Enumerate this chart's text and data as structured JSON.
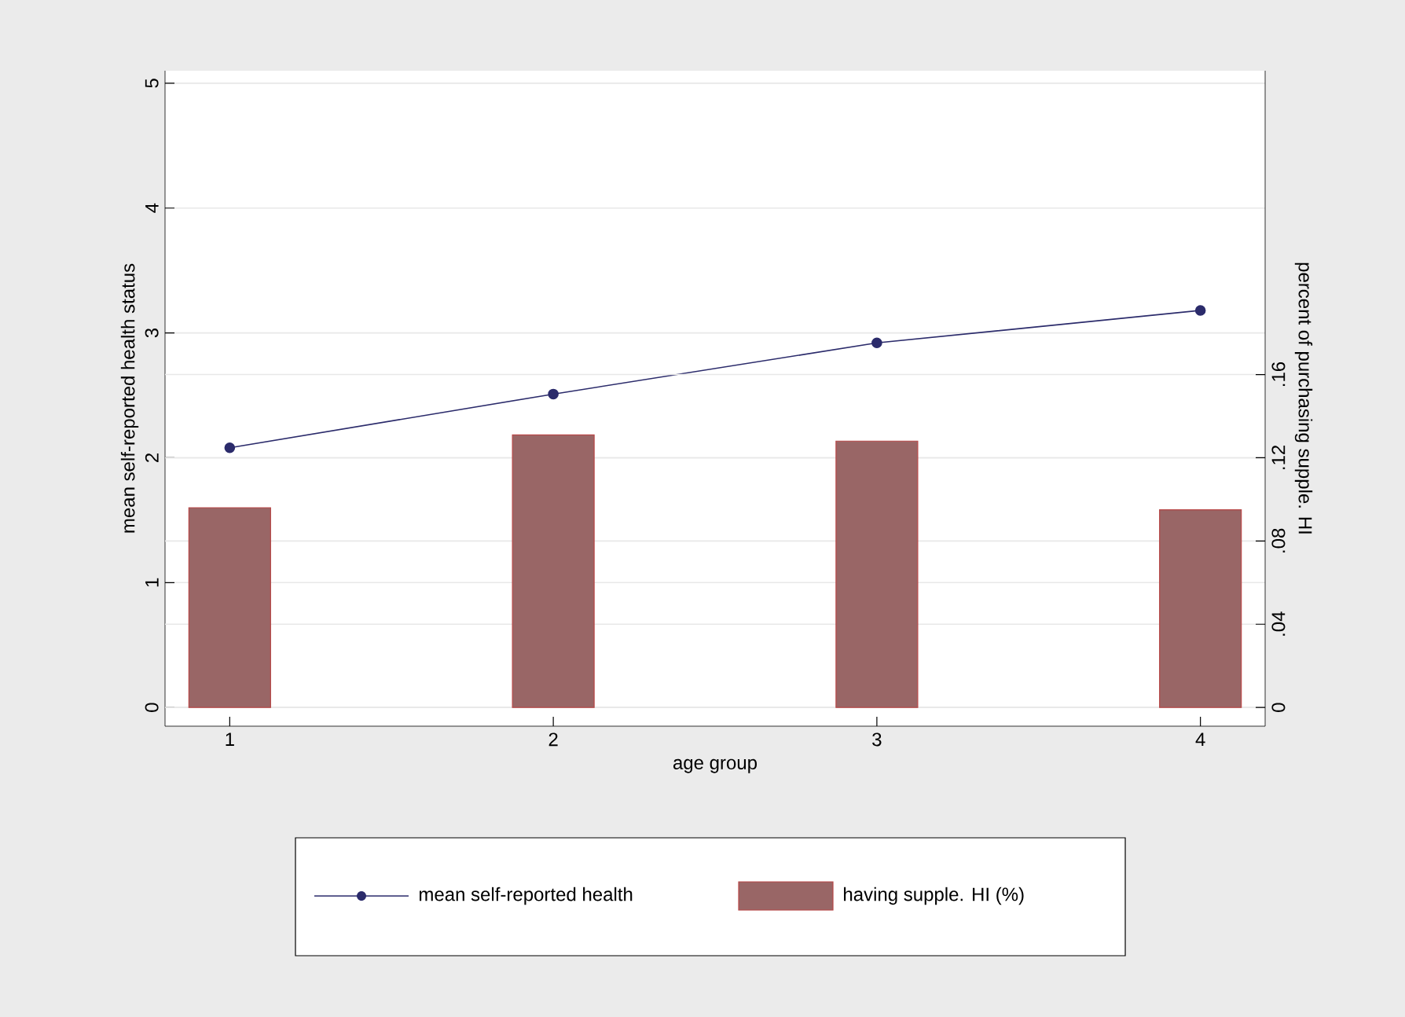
{
  "chart_data": {
    "type": "bar",
    "xlabel": "age group",
    "ylabel": "mean self-reported health status",
    "y2label": "percent of purchasing supple. HI",
    "x": [
      1,
      2,
      3,
      4
    ],
    "series": [
      {
        "name": "mean self-reported health",
        "type": "line",
        "color": "#2b2b6b",
        "values": [
          2.08,
          2.51,
          2.92,
          3.18
        ]
      },
      {
        "name": "having supple. HI (%)",
        "axis": "y2",
        "color": "#996666",
        "values": [
          0.096,
          0.131,
          0.128,
          0.095
        ]
      }
    ],
    "xlim": [
      0.8,
      4.2
    ],
    "xticks": [
      1,
      2,
      3,
      4
    ],
    "ylim": [
      -0.15,
      5.1
    ],
    "yticks": [
      0,
      1,
      2,
      3,
      4,
      5
    ],
    "y2lim": [
      -0.009,
      0.306
    ],
    "y2ticks": [
      0,
      {
        "value": 0.04,
        "label": ".04"
      },
      {
        "value": 0.08,
        "label": ".08"
      },
      {
        "value": 0.12,
        "label": ".12"
      },
      {
        "value": 0.16,
        "label": ".16"
      }
    ],
    "grid": "y",
    "legend": "bottom",
    "marker": "circle",
    "line_style": "solid"
  }
}
